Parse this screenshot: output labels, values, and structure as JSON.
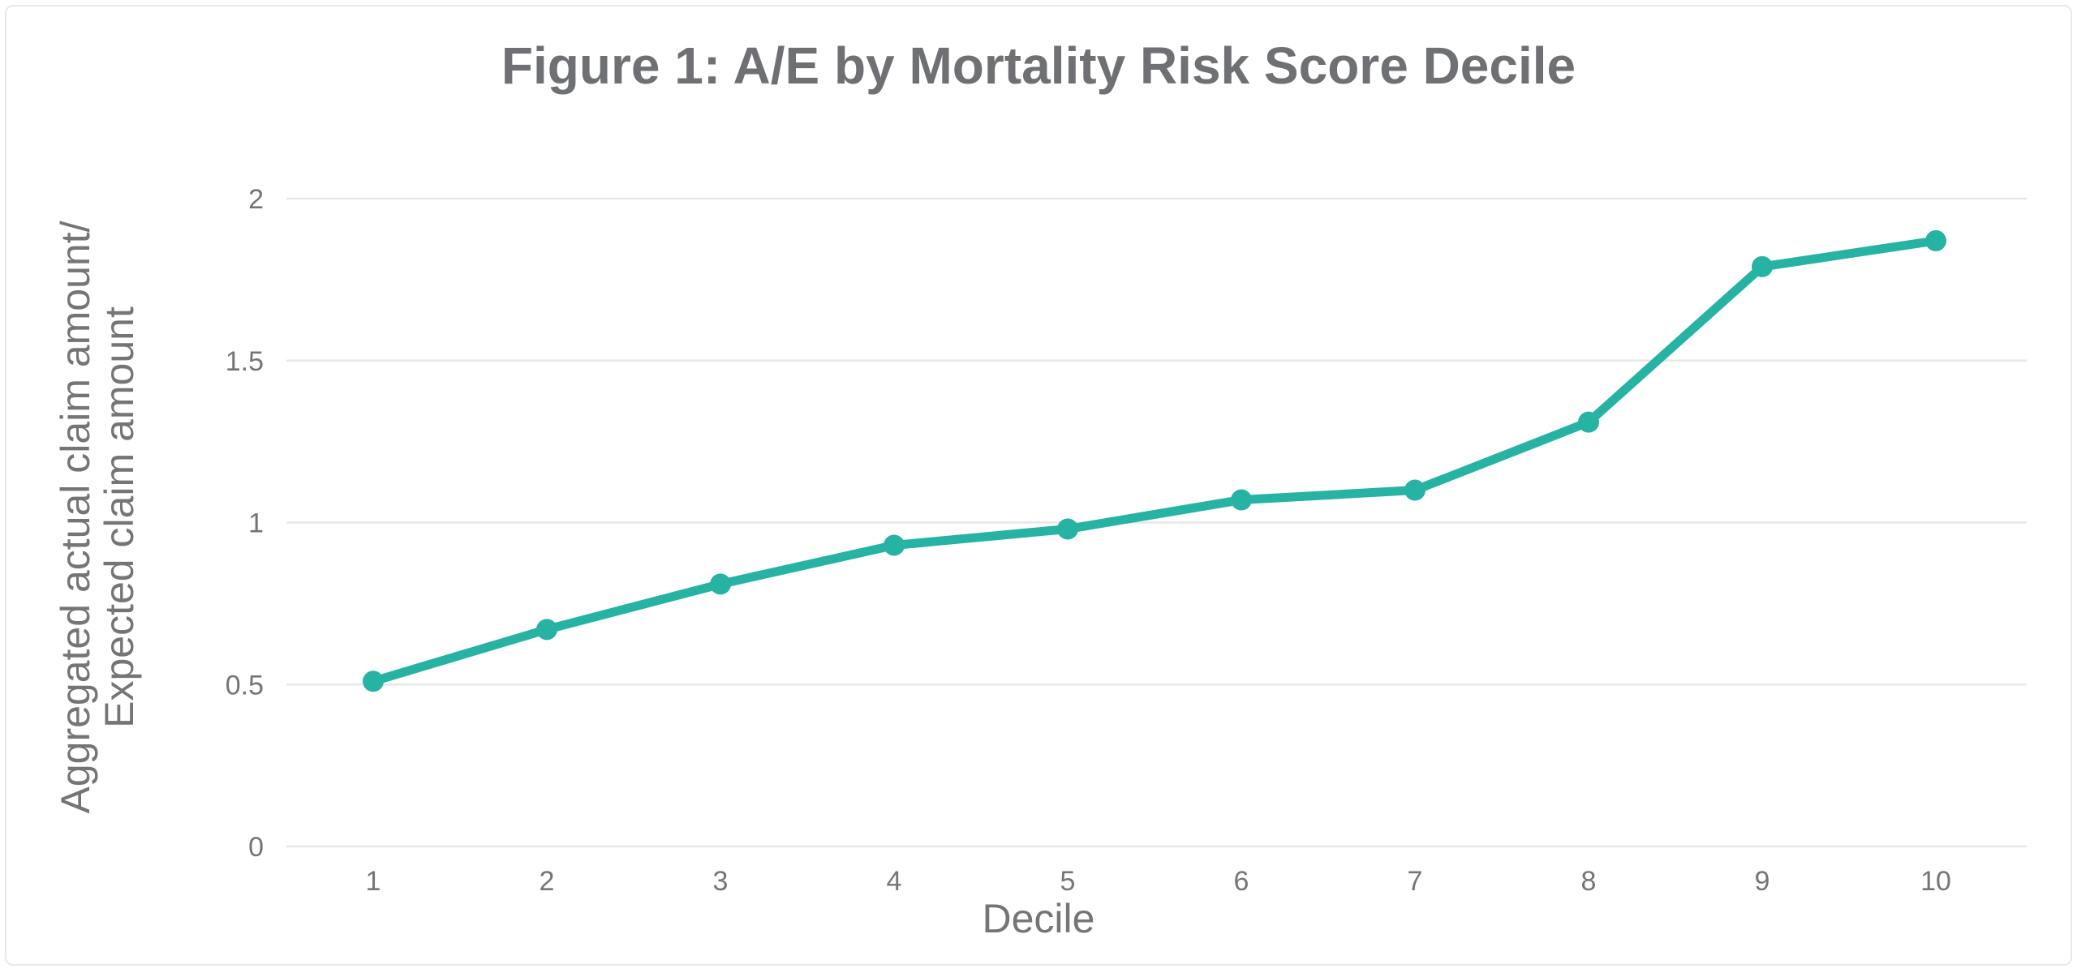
{
  "chart_data": {
    "type": "line",
    "title": "Figure 1: A/E by Mortality Risk Score Decile",
    "xlabel": "Decile",
    "ylabel_lines": [
      "Aggregated actual claim amount/",
      "Expected claim amount"
    ],
    "categories": [
      "1",
      "2",
      "3",
      "4",
      "5",
      "6",
      "7",
      "8",
      "9",
      "10"
    ],
    "series": [
      {
        "name": "A/E",
        "values": [
          0.51,
          0.67,
          0.81,
          0.93,
          0.98,
          1.07,
          1.1,
          1.31,
          1.79,
          1.87
        ]
      }
    ],
    "ylim": [
      0,
      2
    ],
    "yticks": [
      0,
      0.5,
      1,
      1.5,
      2
    ],
    "ytick_labels": [
      "0",
      "0.5",
      "1",
      "1.5",
      "2"
    ],
    "grid": "horizontal",
    "legend": "none"
  },
  "theme": {
    "line_color": "#26b3a4",
    "marker_color": "#26b3a4",
    "grid_color": "#e7e7e7",
    "title_color": "#6e7074",
    "axis_text_color": "#757575",
    "background": "#ffffff",
    "card_border_color": "#e8e8e8"
  }
}
